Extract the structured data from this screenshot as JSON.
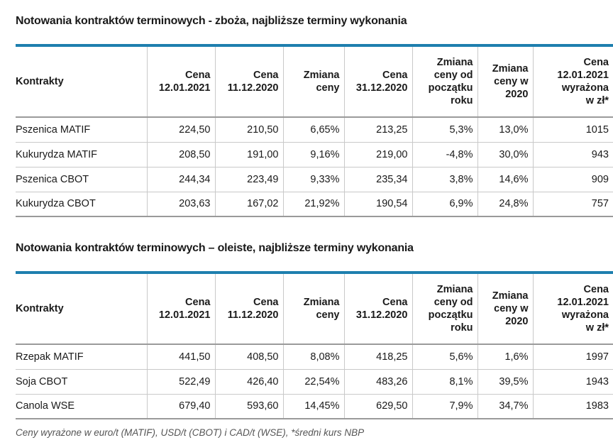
{
  "table1": {
    "title": "Notowania kontraktów terminowych - zboża, najbliższe terminy wykonania",
    "headers": [
      [
        "Kontrakty"
      ],
      [
        "Cena",
        "12.01.2021"
      ],
      [
        "Cena",
        "11.12.2020"
      ],
      [
        "Zmiana",
        "ceny"
      ],
      [
        "Cena",
        "31.12.2020"
      ],
      [
        "Zmiana",
        "ceny od",
        "początku",
        "roku"
      ],
      [
        "Zmiana",
        "ceny w",
        "2020"
      ],
      [
        "Cena",
        "12.01.2021",
        "wyrażona",
        "w zł*"
      ]
    ],
    "rows": [
      [
        "Pszenica MATIF",
        "224,50",
        "210,50",
        "6,65%",
        "213,25",
        "5,3%",
        "13,0%",
        "1015"
      ],
      [
        "Kukurydza MATIF",
        "208,50",
        "191,00",
        "9,16%",
        "219,00",
        "-4,8%",
        "30,0%",
        "943"
      ],
      [
        "Pszenica CBOT",
        "244,34",
        "223,49",
        "9,33%",
        "235,34",
        "3,8%",
        "14,6%",
        "909"
      ],
      [
        "Kukurydza CBOT",
        "203,63",
        "167,02",
        "21,92%",
        "190,54",
        "6,9%",
        "24,8%",
        "757"
      ]
    ]
  },
  "table2": {
    "title": "Notowania kontraktów terminowych – oleiste, najbliższe terminy wykonania",
    "headers": [
      [
        "Kontrakty"
      ],
      [
        "Cena",
        "12.01.2021"
      ],
      [
        "Cena",
        "11.12.2020"
      ],
      [
        "Zmiana",
        "ceny"
      ],
      [
        "Cena",
        "31.12.2020"
      ],
      [
        "Zmiana",
        "ceny od",
        "początku",
        "roku"
      ],
      [
        "Zmiana",
        "ceny w",
        "2020"
      ],
      [
        "Cena",
        "12.01.2021",
        "wyrażona",
        "w zł*"
      ]
    ],
    "rows": [
      [
        "Rzepak MATIF",
        "441,50",
        "408,50",
        "8,08%",
        "418,25",
        "5,6%",
        "1,6%",
        "1997"
      ],
      [
        "Soja CBOT",
        "522,49",
        "426,40",
        "22,54%",
        "483,26",
        "8,1%",
        "39,5%",
        "1943"
      ],
      [
        "Canola WSE",
        "679,40",
        "593,60",
        "14,45%",
        "629,50",
        "7,9%",
        "34,7%",
        "1983"
      ]
    ]
  },
  "footnote": "Ceny wyrażone w euro/t (MATIF), USD/t (CBOT) i CAD/t (WSE), *średni kurs NBP",
  "colors": {
    "header_rule": "#1e7fae",
    "text": "#1a1a1a",
    "grid": "#c9c9c9"
  }
}
